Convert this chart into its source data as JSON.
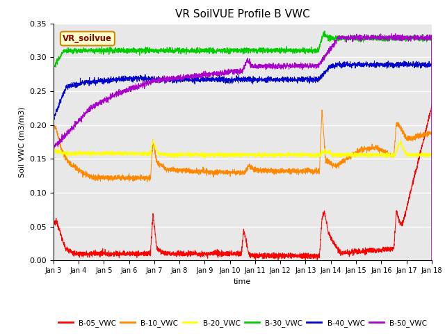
{
  "title": "VR SoilVUE Profile B VWC",
  "xlabel": "time",
  "ylabel": "Soil VWC (m3/m3)",
  "ylim": [
    0.0,
    0.35
  ],
  "yticks": [
    0.0,
    0.05,
    0.1,
    0.15,
    0.2,
    0.25,
    0.3,
    0.35
  ],
  "xtick_labels": [
    "Jan 3",
    "Jan 4",
    "Jan 5",
    "Jan 6",
    "Jan 7",
    "Jan 8",
    "Jan 9",
    "Jan 10",
    "Jan 11",
    "Jan 12",
    "Jan 13",
    "Jan 14",
    "Jan 15",
    "Jan 16",
    "Jan 17",
    "Jan 18"
  ],
  "legend_label": "VR_soilvue",
  "legend_box_color": "#ffffcc",
  "legend_border_color": "#cc8800",
  "series_colors": {
    "B-05_VWC": "#ff0000",
    "B-10_VWC": "#ff8800",
    "B-20_VWC": "#ffff00",
    "B-30_VWC": "#00cc00",
    "B-40_VWC": "#0000cc",
    "B-50_VWC": "#aa00cc"
  },
  "bg_color": "#e8e8e8",
  "grid_color": "#ffffff",
  "title_fontsize": 11
}
